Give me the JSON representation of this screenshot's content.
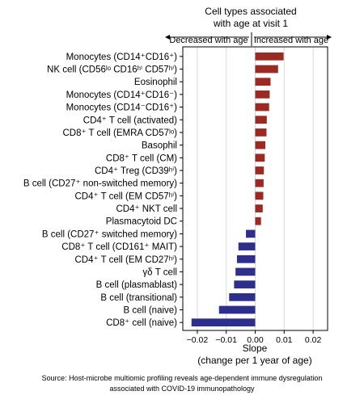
{
  "chart_data": {
    "type": "bar",
    "orientation": "horizontal",
    "title": [
      "Cell types associated",
      "with age at visit 1"
    ],
    "direction_labels": {
      "negative": "Decreased with age",
      "positive": "Increased with age"
    },
    "xlabel": [
      "Slope",
      "(change per 1 year of age)"
    ],
    "xlim": [
      -0.025,
      0.025
    ],
    "xticks": [
      -0.02,
      -0.01,
      0.0,
      0.01,
      0.02
    ],
    "xtick_labels": [
      "−0.02",
      "−0.01",
      "0.00",
      "0.01",
      "0.02"
    ],
    "grid": true,
    "categories": [
      "Monocytes (CD14⁺CD16⁺)",
      "NK cell (CD56ˡᵒ CD16ʰⁱ CD57ʰⁱ)",
      "Eosinophil",
      "Monocytes (CD14⁺CD16⁻)",
      "Monocytes (CD14⁻CD16⁺)",
      "CD4⁺ T cell (activated)",
      "CD8⁺ T cell (EMRA CD57ˡᵒ)",
      "Basophil",
      "CD8⁺ T cell (CM)",
      "CD4⁺ Treg (CD39ʰⁱ)",
      "B cell (CD27⁺ non-switched memory)",
      "CD4⁺ T cell (EM CD57ʰⁱ)",
      "CD4⁺ NKT cell",
      "Plasmacytoid DC",
      "B cell (CD27⁺ switched memory)",
      "CD8⁺ T cell (CD161⁺ MAIT)",
      "CD4⁺ T cell (EM CD27ʰⁱ)",
      "γδ T cell",
      "B cell (plasmablast)",
      "B cell (transitional)",
      "B cell (naive)",
      "CD8⁺ cell (naive)"
    ],
    "values": [
      0.0098,
      0.0079,
      0.0053,
      0.005,
      0.0048,
      0.004,
      0.0039,
      0.0035,
      0.0033,
      0.003,
      0.0029,
      0.0028,
      0.0026,
      0.002,
      -0.0032,
      -0.0058,
      -0.0063,
      -0.0068,
      -0.0073,
      -0.009,
      -0.0125,
      -0.022
    ],
    "colors": {
      "positive": "#9b2a22",
      "negative": "#2e2f8c",
      "grid": "#d9d9d9",
      "frame": "#000000"
    }
  },
  "source_note": [
    "Source: Host-microbe multiomic profiling reveals age-dependent immune dysregulation",
    "associated with COVID-19 immunopathology"
  ]
}
